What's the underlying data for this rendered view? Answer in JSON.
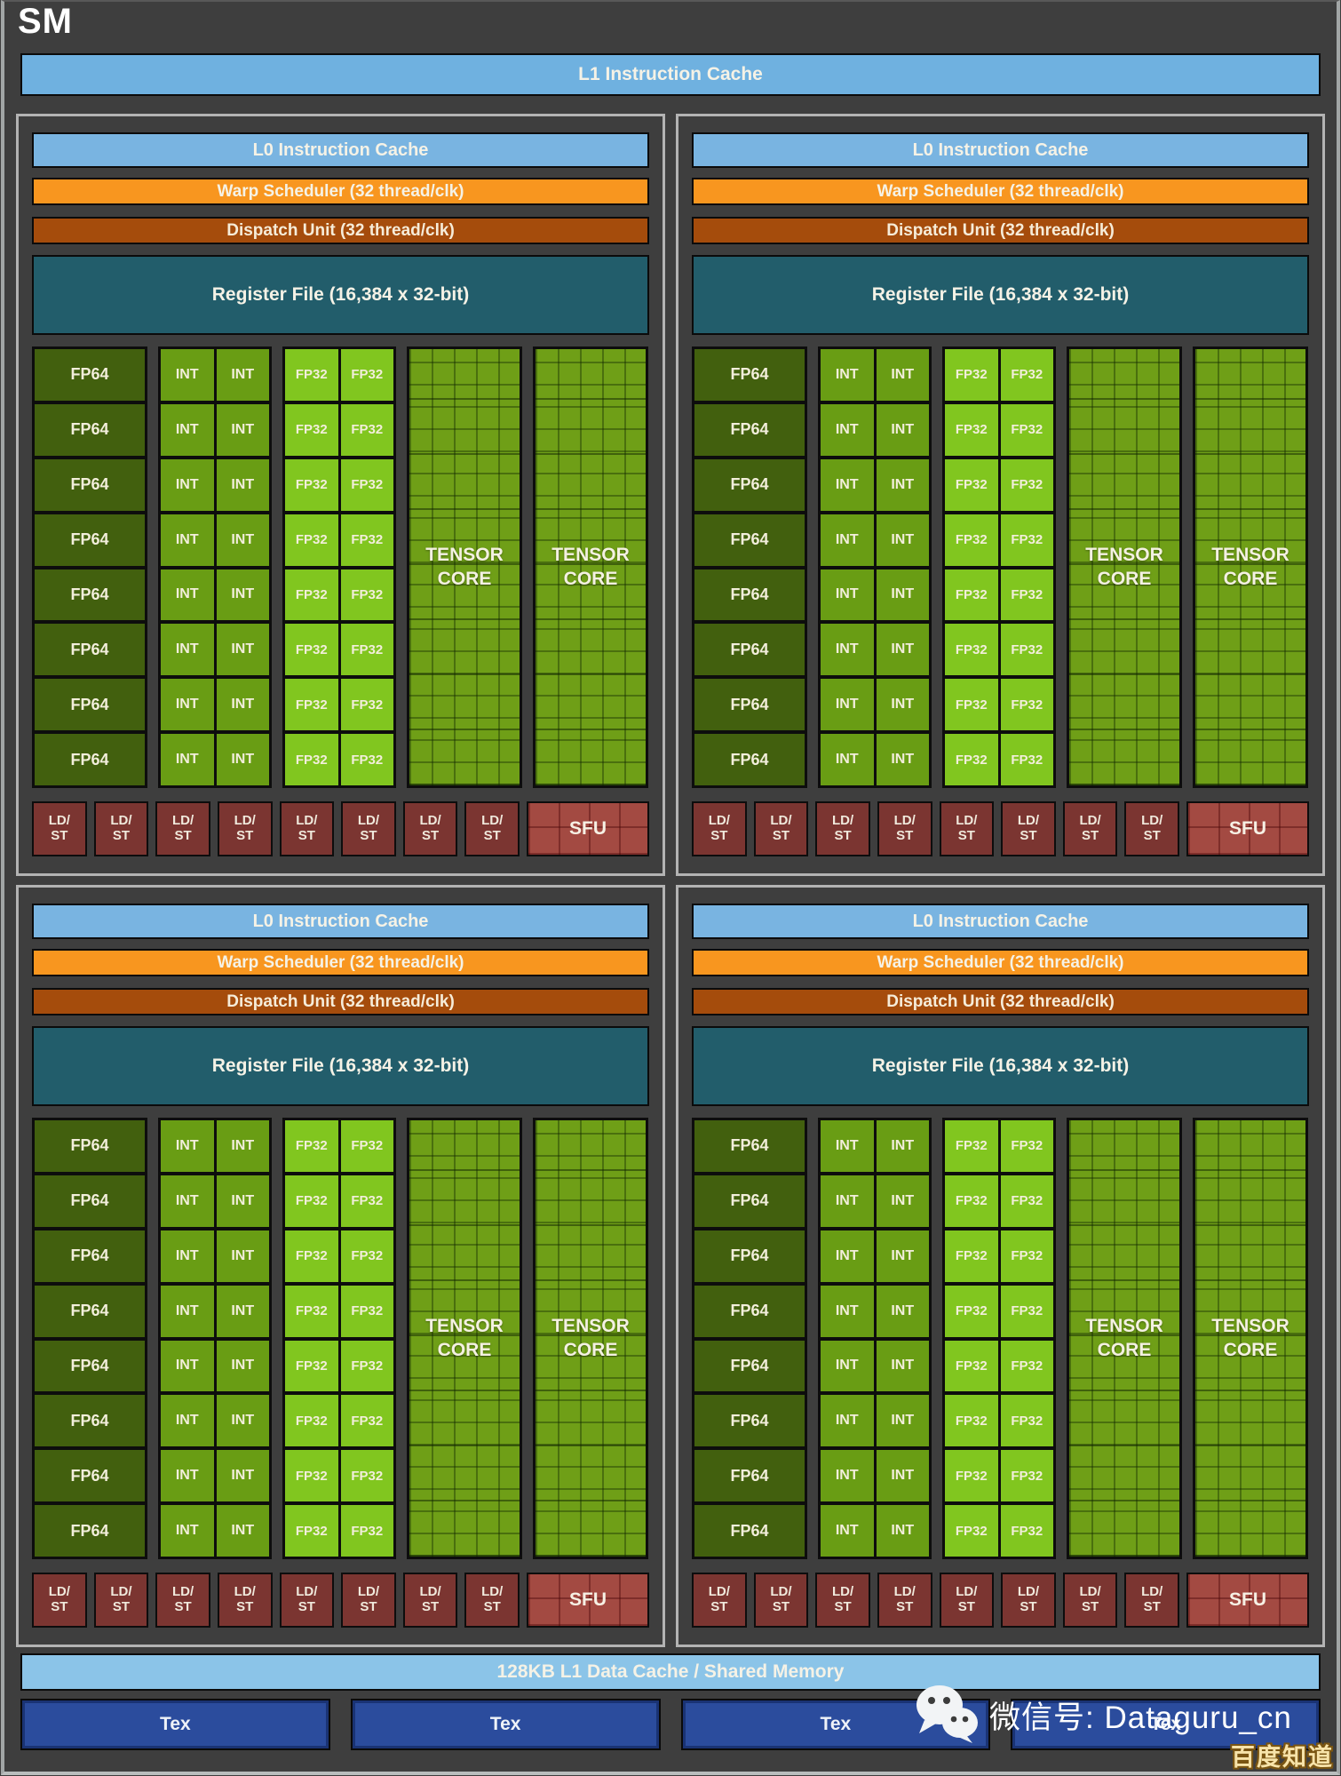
{
  "title": "SM",
  "l1_cache_label": "L1 Instruction Cache",
  "partition": {
    "count": 4,
    "l0_label": "L0 Instruction Cache",
    "warp_label": "Warp Scheduler (32 thread/clk)",
    "dispatch_label": "Dispatch Unit (32 thread/clk)",
    "regfile_label": "Register File (16,384 x 32-bit)",
    "core": {
      "rows": 8,
      "fp64_label": "FP64",
      "int_label": "INT",
      "fp32_label": "FP32",
      "tensor_core_label": "TENSOR CORE",
      "tensor_core_count": 2
    },
    "ldst_count": 8,
    "ldst_line1": "LD/",
    "ldst_line2": "ST",
    "sfu_label": "SFU"
  },
  "footer": {
    "shared_memory_label": "128KB L1 Data Cache / Shared Memory",
    "tex_labels": [
      "Tex",
      "Tex",
      "Tex",
      "Tex"
    ]
  },
  "watermark": {
    "icon": "wechat-icon",
    "wechat_label": "微信号: Dataguru_cn",
    "badge": "百度知道"
  },
  "colors": {
    "background": "#3e3e3e",
    "instruction_cache_blue": "#79b4e1",
    "data_cache_blue": "#8bc4e8",
    "warp_orange": "#f8961f",
    "dispatch_brown": "#a54c0c",
    "register_teal": "#225d6b",
    "fp64_green": "#42600e",
    "int_green": "#699d14",
    "fp32_green": "#81c61f",
    "tensor_green": "#6f9f17",
    "ldst_maroon": "#7b3531",
    "sfu_red": "#a34a42",
    "tex_blue": "#2b4c9d",
    "partition_border": "#b3b3b3"
  }
}
